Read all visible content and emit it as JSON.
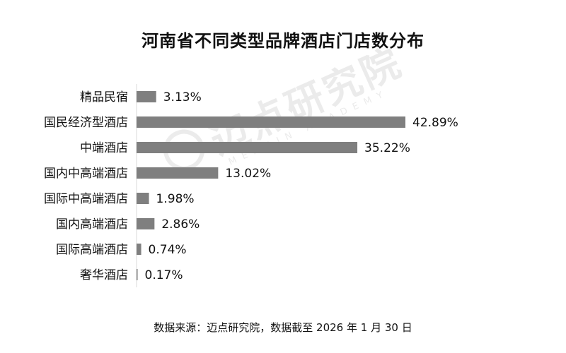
{
  "chart_data": {
    "type": "bar",
    "orientation": "horizontal",
    "title": "河南省不同类型品牌酒店门店数分布",
    "categories": [
      "精品民宿",
      "国民经济型酒店",
      "中端酒店",
      "国内中高端酒店",
      "国际中高端酒店",
      "国内高端酒店",
      "国际高端酒店",
      "奢华酒店"
    ],
    "values": [
      3.13,
      42.89,
      35.22,
      13.02,
      1.98,
      2.86,
      0.74,
      0.17
    ],
    "value_labels": [
      "3.13%",
      "42.89%",
      "35.22%",
      "13.02%",
      "1.98%",
      "2.86%",
      "0.74%",
      "0.17%"
    ],
    "unit": "%",
    "xlabel": "",
    "ylabel": "",
    "grid": false,
    "legend": "none",
    "bar_color": "#7f7f7f"
  },
  "source_note": "数据来源：迈点研究院，数据截至 2026 年 1 月 30 日",
  "watermark": {
    "text": "迈点研究院",
    "subtext": "MEADIN ACADEMY"
  }
}
